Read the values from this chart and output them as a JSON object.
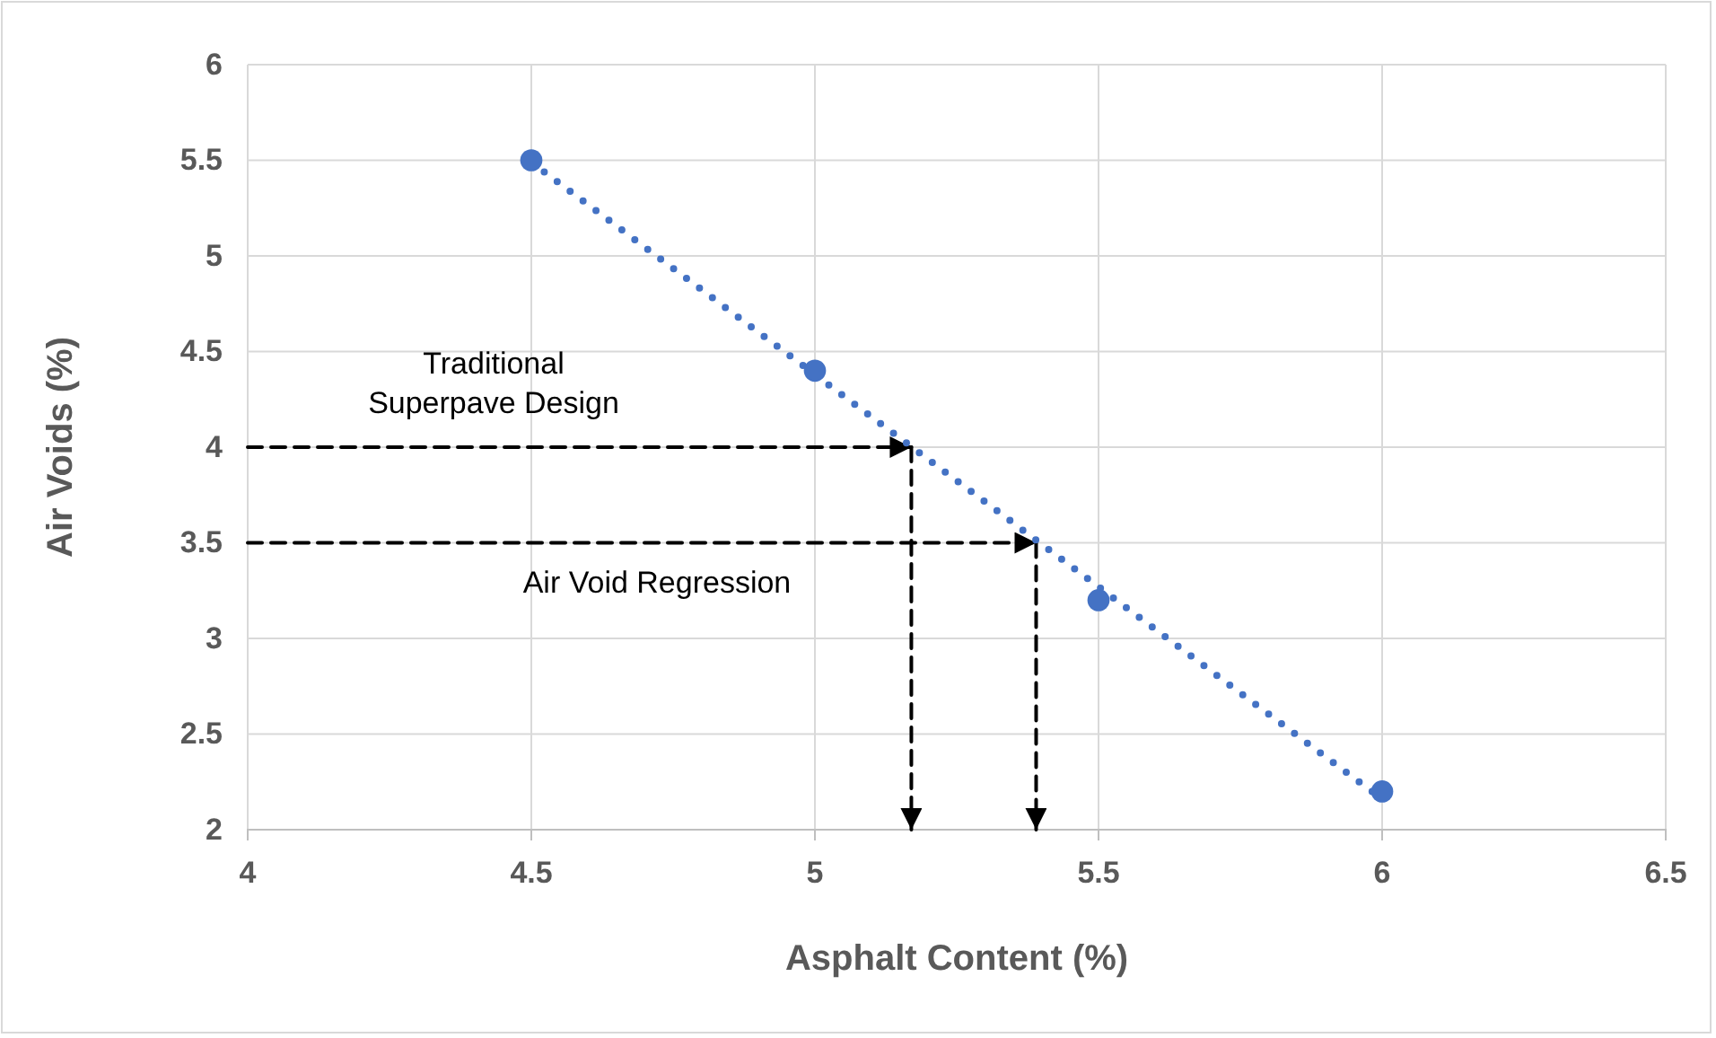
{
  "chart_data": {
    "type": "scatter",
    "xlabel": "Asphalt Content (%)",
    "ylabel": "Air Voids (%)",
    "x": [
      4.5,
      5,
      5.5,
      6
    ],
    "series": [
      {
        "color": "#4472c4",
        "marker": "circle",
        "values": [
          5.5,
          4.4,
          3.2,
          2.2
        ]
      },
      {
        "type": "line",
        "color": "#4472c4",
        "line_style": "dotted",
        "x": [
          4.5,
          6
        ],
        "values": [
          5.49,
          2.16
        ]
      },
      {
        "type": "line",
        "color": "#000000",
        "line_style": "dashed",
        "x": [
          4,
          5.17
        ],
        "values": [
          4,
          4
        ]
      },
      {
        "type": "line",
        "color": "#000000",
        "line_style": "dashed",
        "x": [
          5.17,
          5.17
        ],
        "values": [
          4,
          2
        ]
      },
      {
        "type": "line",
        "color": "#000000",
        "line_style": "dashed",
        "x": [
          4,
          5.39
        ],
        "values": [
          3.5,
          3.5
        ]
      },
      {
        "type": "line",
        "color": "#000000",
        "line_style": "dashed",
        "x": [
          5.39,
          5.39
        ],
        "values": [
          3.5,
          2
        ]
      }
    ],
    "xlim": [
      4,
      6.5
    ],
    "xticks": [
      4,
      4.5,
      5,
      5.5,
      6,
      6.5
    ],
    "ylim": [
      2,
      6
    ],
    "yticks": [
      2,
      2.5,
      3,
      3.5,
      4,
      4.5,
      5,
      5.5,
      6
    ],
    "grid": true,
    "annotations": [
      "Traditional\nSuperpave Design",
      "Air Void Regression"
    ]
  }
}
